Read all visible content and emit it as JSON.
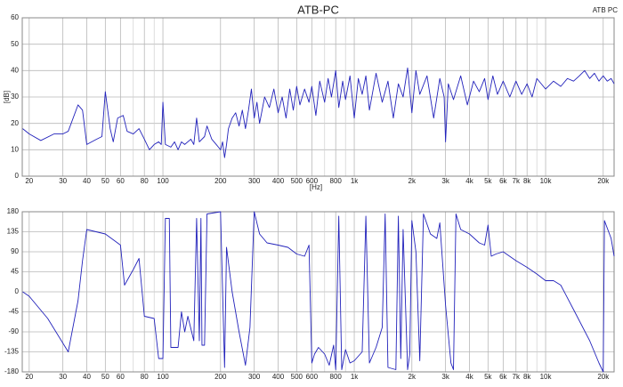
{
  "chart_data": [
    {
      "type": "line",
      "title": "ATB-PC",
      "corner_label": "ATB PC",
      "xlabel": "[Hz]",
      "ylabel": "[dB]",
      "xscale": "log",
      "grid": true,
      "color": "#2222bb",
      "xlim": [
        18.4,
        22800
      ],
      "ylim": [
        0,
        60
      ],
      "yticks": [
        0,
        10,
        20,
        30,
        40,
        50,
        60
      ],
      "xticks": [
        20,
        30,
        40,
        50,
        60,
        80,
        100,
        200,
        300,
        400,
        500,
        600,
        800,
        {
          "value": 1000,
          "label": "1k"
        },
        {
          "value": 2000,
          "label": "2k"
        },
        {
          "value": 3000,
          "label": "3k"
        },
        {
          "value": 4000,
          "label": "4k"
        },
        {
          "value": 5000,
          "label": "5k"
        },
        {
          "value": 6000,
          "label": "6k"
        },
        {
          "value": 7000,
          "label": "7k"
        },
        {
          "value": 8000,
          "label": "8k"
        },
        {
          "value": 10000,
          "label": "10k"
        },
        {
          "value": 20000,
          "label": "20k"
        }
      ],
      "xgrid": [
        70,
        90,
        700,
        900,
        9000
      ],
      "x": [
        18.5,
        20,
        23,
        27,
        30,
        32,
        36,
        38,
        40,
        45,
        48,
        50,
        53,
        55,
        58,
        62,
        65,
        70,
        75,
        80,
        85,
        90,
        95,
        98,
        100,
        103,
        110,
        115,
        120,
        125,
        130,
        140,
        145,
        150,
        155,
        165,
        170,
        180,
        190,
        195,
        200,
        205,
        210,
        215,
        220,
        230,
        240,
        250,
        260,
        270,
        280,
        290,
        300,
        310,
        320,
        340,
        360,
        380,
        400,
        420,
        440,
        460,
        480,
        500,
        520,
        550,
        580,
        600,
        630,
        660,
        700,
        730,
        760,
        800,
        830,
        870,
        900,
        950,
        1000,
        1050,
        1100,
        1150,
        1200,
        1300,
        1400,
        1500,
        1600,
        1700,
        1800,
        1900,
        2000,
        2100,
        2200,
        2400,
        2600,
        2800,
        2950,
        3000,
        3100,
        3300,
        3600,
        3900,
        4200,
        4500,
        4800,
        5000,
        5300,
        5600,
        6000,
        6500,
        7000,
        7500,
        8000,
        8500,
        9000,
        10000,
        11000,
        12000,
        13000,
        14000,
        15000,
        16000,
        17000,
        18000,
        19000,
        20000,
        21000,
        22000,
        22800
      ],
      "values": [
        18,
        16,
        13.5,
        16,
        16,
        17,
        27,
        25,
        12,
        14,
        15,
        32,
        18,
        13,
        22,
        23,
        17,
        16,
        18,
        14,
        10,
        12,
        13,
        12,
        28,
        12,
        11,
        13,
        10,
        13,
        12,
        14,
        12,
        22,
        13,
        15,
        19,
        14,
        12,
        11,
        10,
        13,
        7,
        12,
        18,
        22,
        24,
        19,
        25,
        18,
        25,
        33,
        22,
        28,
        20,
        30,
        26,
        33,
        24,
        30,
        22,
        33,
        25,
        34,
        27,
        33,
        28,
        34,
        23,
        36,
        28,
        37,
        30,
        40,
        26,
        36,
        29,
        38,
        22,
        37,
        31,
        38,
        25,
        39,
        28,
        36,
        22,
        35,
        30,
        41,
        24,
        40,
        31,
        38,
        22,
        37,
        30,
        13,
        35,
        29,
        38,
        27,
        36,
        32,
        37,
        29,
        38,
        31,
        36,
        30,
        36,
        31,
        35,
        30,
        37,
        33,
        36,
        34,
        37,
        36,
        38,
        40,
        37,
        39,
        36,
        38,
        36,
        37,
        35
      ]
    },
    {
      "type": "line",
      "xscale": "log",
      "grid": true,
      "color": "#2222bb",
      "xlim": [
        18.4,
        22800
      ],
      "ylim": [
        -180,
        180
      ],
      "yticks": [
        -180,
        -135,
        -90,
        -45,
        0,
        45,
        90,
        135,
        180
      ],
      "xticks": [
        20,
        30,
        40,
        50,
        60,
        80,
        100,
        200,
        300,
        400,
        500,
        600,
        800,
        {
          "value": 1000,
          "label": "1k"
        },
        {
          "value": 2000,
          "label": "2k"
        },
        {
          "value": 3000,
          "label": "3k"
        },
        {
          "value": 4000,
          "label": "4k"
        },
        {
          "value": 5000,
          "label": "5k"
        },
        {
          "value": 6000,
          "label": "6k"
        },
        {
          "value": 7000,
          "label": "7k"
        },
        {
          "value": 8000,
          "label": "8k"
        },
        {
          "value": 10000,
          "label": "10k"
        },
        {
          "value": 20000,
          "label": "20k"
        }
      ],
      "xgrid": [
        70,
        90,
        700,
        900,
        9000
      ],
      "x": [
        18.5,
        20,
        25,
        32,
        36,
        38,
        40,
        50,
        60,
        63,
        70,
        75,
        80,
        90,
        95,
        100,
        103,
        108,
        110,
        120,
        125,
        130,
        135,
        145,
        150,
        155,
        158,
        160,
        165,
        170,
        200,
        210,
        215,
        230,
        250,
        270,
        285,
        300,
        320,
        350,
        400,
        450,
        500,
        550,
        580,
        600,
        620,
        650,
        700,
        740,
        780,
        800,
        830,
        860,
        900,
        950,
        1000,
        1100,
        1150,
        1200,
        1300,
        1400,
        1450,
        1500,
        1650,
        1700,
        1750,
        1800,
        1900,
        1950,
        2000,
        2100,
        2200,
        2300,
        2500,
        2700,
        2800,
        3000,
        3200,
        3300,
        3400,
        3600,
        4000,
        4500,
        4800,
        5000,
        5200,
        5500,
        6000,
        7000,
        8000,
        9000,
        10000,
        11000,
        12000,
        14000,
        17000,
        19000,
        20000,
        20300,
        22000,
        22800
      ],
      "values": [
        0,
        -10,
        -60,
        -135,
        -20,
        70,
        140,
        130,
        105,
        15,
        50,
        75,
        -55,
        -60,
        -150,
        -150,
        165,
        165,
        -125,
        -125,
        -45,
        -90,
        -55,
        -110,
        165,
        -110,
        165,
        -120,
        -120,
        175,
        180,
        -170,
        100,
        0,
        -90,
        -165,
        -80,
        180,
        130,
        110,
        105,
        100,
        85,
        80,
        105,
        -160,
        -140,
        -125,
        -140,
        -165,
        -120,
        -175,
        170,
        -175,
        -130,
        -160,
        -155,
        -135,
        170,
        -160,
        -125,
        -80,
        175,
        -170,
        -175,
        170,
        -150,
        140,
        -175,
        -140,
        160,
        90,
        -155,
        175,
        130,
        120,
        155,
        -30,
        -160,
        -175,
        175,
        140,
        130,
        110,
        105,
        150,
        80,
        85,
        90,
        70,
        55,
        40,
        25,
        25,
        15,
        -40,
        -110,
        -160,
        -180,
        160,
        120,
        80
      ]
    }
  ]
}
